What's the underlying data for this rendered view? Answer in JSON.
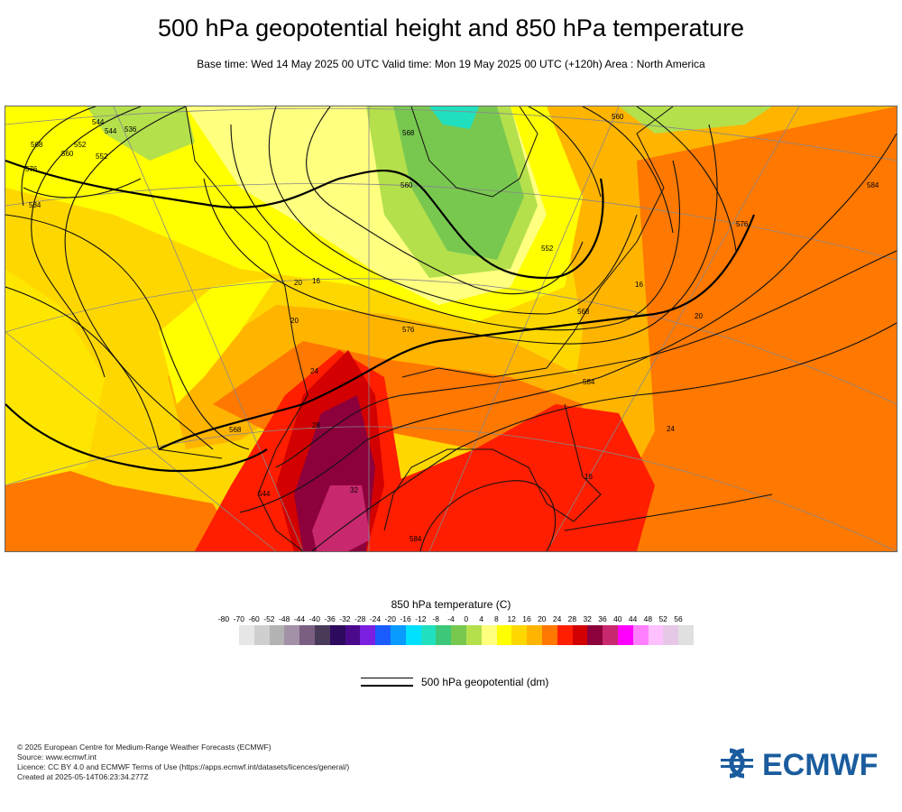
{
  "header": {
    "title": "500 hPa geopotential height and 850 hPa temperature",
    "subtitle": "Base time: Wed 14 May 2025 00 UTC Valid time: Mon 19 May 2025 00 UTC (+120h) Area : North America"
  },
  "map": {
    "contour_labels": [
      "536",
      "544",
      "552",
      "560",
      "568",
      "576",
      "584",
      "560",
      "568",
      "552",
      "560",
      "576",
      "568",
      "584",
      "568",
      "544",
      "584",
      "576",
      "584",
      "552",
      "544",
      "16",
      "20",
      "20",
      "24",
      "16",
      "28",
      "32",
      "24",
      "20",
      "16"
    ]
  },
  "legend": {
    "title": "850 hPa temperature (C)",
    "ticks": [
      "-80",
      "-70",
      "-60",
      "-52",
      "-48",
      "-44",
      "-40",
      "-36",
      "-32",
      "-28",
      "-24",
      "-20",
      "-16",
      "-12",
      "-8",
      "-4",
      "0",
      "4",
      "8",
      "12",
      "16",
      "20",
      "24",
      "28",
      "32",
      "36",
      "40",
      "44",
      "48",
      "52",
      "56"
    ],
    "colors": [
      "#e6e6e6",
      "#cfcfcf",
      "#b3b3b3",
      "#a391a8",
      "#7a5f83",
      "#4a3a5a",
      "#2e0a5e",
      "#4b0a8c",
      "#7b1fe0",
      "#1a5cff",
      "#0a9bff",
      "#00e0ff",
      "#20e0c0",
      "#3cc878",
      "#78c850",
      "#b4e04c",
      "#ffff80",
      "#ffff00",
      "#ffd700",
      "#ffb400",
      "#ff7800",
      "#ff1e00",
      "#d20000",
      "#8c003c",
      "#c8286e",
      "#ff00ff",
      "#ff80ff",
      "#ffc0ff",
      "#e6c8e6",
      "#e0e0e0"
    ],
    "contour_label": "500 hPa geopotential (dm)"
  },
  "footer": {
    "line1": "© 2025 European Centre for Medium-Range Weather Forecasts (ECMWF)",
    "line2": "Source: www.ecmwf.int",
    "line3": "Licence: CC BY 4.0 and ECMWF Terms of Use (https://apps.ecmwf.int/datasets/licences/general/)",
    "line4": "Created at 2025-05-14T06:23:34.277Z"
  },
  "logo": {
    "text": "ECMWF",
    "color": "#1a5c9e"
  }
}
